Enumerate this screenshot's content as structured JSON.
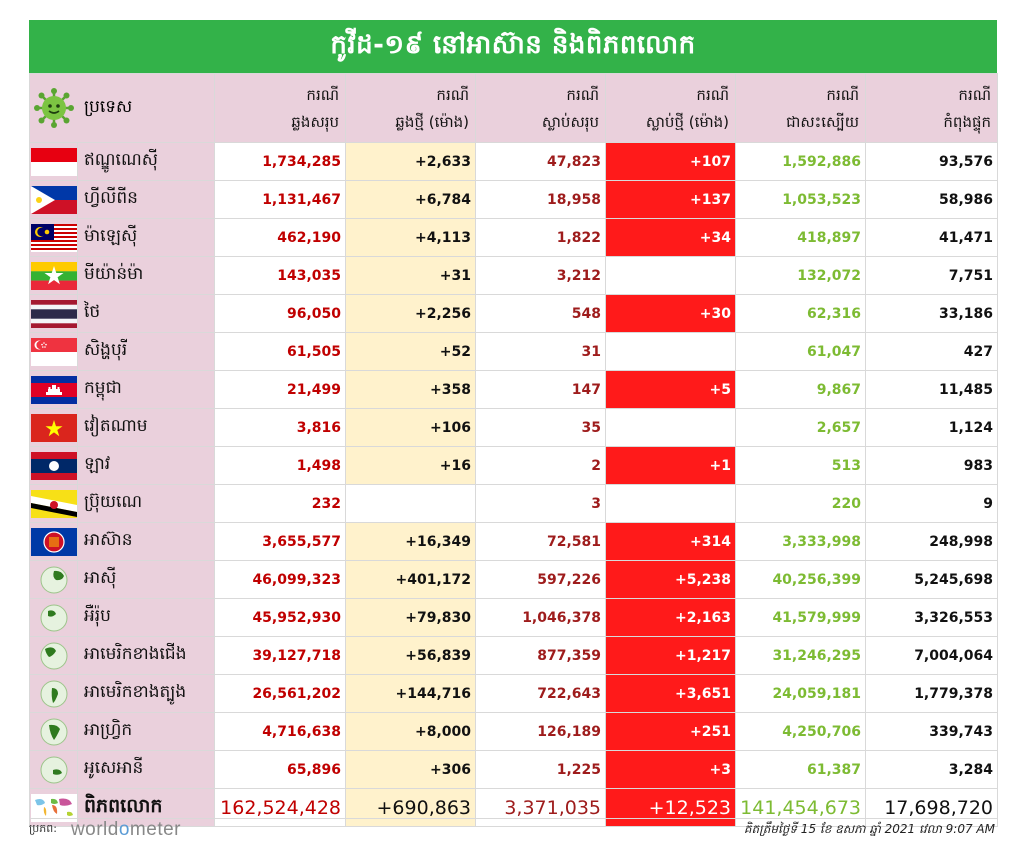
{
  "title": "កូវីដ-១៩ នៅអាស៊ាន និងពិភពលោក",
  "header": {
    "country": "ប្រទេស",
    "cols": [
      {
        "l1": "ករណី",
        "l2": "ឆ្លងសរុប"
      },
      {
        "l1": "ករណី",
        "l2": "ឆ្លងថ្មី (ម៉ោង)"
      },
      {
        "l1": "ករណី",
        "l2": "ស្លាប់សរុប"
      },
      {
        "l1": "ករណី",
        "l2": "ស្លាប់ថ្មី (ម៉ោង)"
      },
      {
        "l1": "ករណី",
        "l2": "ជាសះស្បើយ"
      },
      {
        "l1": "ករណី",
        "l2": "កំពុងផ្ទុក"
      }
    ]
  },
  "rows": [
    {
      "icon": "indonesia-flag-icon",
      "name": "ឥណ្ឌូណេស៊ី",
      "total": "1,734,285",
      "new": "+2,633",
      "deaths": "47,823",
      "new_deaths": "+107",
      "recovered": "1,592,886",
      "active": "93,576"
    },
    {
      "icon": "philippines-flag-icon",
      "name": "ហ្វីលីពីន",
      "total": "1,131,467",
      "new": "+6,784",
      "deaths": "18,958",
      "new_deaths": "+137",
      "recovered": "1,053,523",
      "active": "58,986"
    },
    {
      "icon": "malaysia-flag-icon",
      "name": "ម៉ាឡេស៊ី",
      "total": "462,190",
      "new": "+4,113",
      "deaths": "1,822",
      "new_deaths": "+34",
      "recovered": "418,897",
      "active": "41,471"
    },
    {
      "icon": "myanmar-flag-icon",
      "name": "មីយ៉ាន់ម៉ា",
      "total": "143,035",
      "new": "+31",
      "deaths": "3,212",
      "new_deaths": "",
      "recovered": "132,072",
      "active": "7,751"
    },
    {
      "icon": "thailand-flag-icon",
      "name": "ថៃ",
      "total": "96,050",
      "new": "+2,256",
      "deaths": "548",
      "new_deaths": "+30",
      "recovered": "62,316",
      "active": "33,186"
    },
    {
      "icon": "singapore-flag-icon",
      "name": "សិង្ហបុរី",
      "total": "61,505",
      "new": "+52",
      "deaths": "31",
      "new_deaths": "",
      "recovered": "61,047",
      "active": "427"
    },
    {
      "icon": "cambodia-flag-icon",
      "name": "កម្ពុជា",
      "total": "21,499",
      "new": "+358",
      "deaths": "147",
      "new_deaths": "+5",
      "recovered": "9,867",
      "active": "11,485"
    },
    {
      "icon": "vietnam-flag-icon",
      "name": "វៀតណាម",
      "total": "3,816",
      "new": "+106",
      "deaths": "35",
      "new_deaths": "",
      "recovered": "2,657",
      "active": "1,124"
    },
    {
      "icon": "laos-flag-icon",
      "name": "ឡាវ",
      "total": "1,498",
      "new": "+16",
      "deaths": "2",
      "new_deaths": "+1",
      "recovered": "513",
      "active": "983"
    },
    {
      "icon": "brunei-flag-icon",
      "name": "ប្រ៊ុយណេ",
      "total": "232",
      "new": "",
      "deaths": "3",
      "new_deaths": "",
      "recovered": "220",
      "active": "9"
    },
    {
      "icon": "asean-flag-icon",
      "name": "អាស៊ាន",
      "total": "3,655,577",
      "new": "+16,349",
      "deaths": "72,581",
      "new_deaths": "+314",
      "recovered": "3,333,998",
      "active": "248,998"
    },
    {
      "icon": "asia-globe-icon",
      "name": "អាស៊ី",
      "total": "46,099,323",
      "new": "+401,172",
      "deaths": "597,226",
      "new_deaths": "+5,238",
      "recovered": "40,256,399",
      "active": "5,245,698"
    },
    {
      "icon": "europe-globe-icon",
      "name": "អឺរ៉ុប",
      "total": "45,952,930",
      "new": "+79,830",
      "deaths": "1,046,378",
      "new_deaths": "+2,163",
      "recovered": "41,579,999",
      "active": "3,326,553"
    },
    {
      "icon": "north-america-globe-icon",
      "name": "អាមេរិកខាងជើង",
      "total": "39,127,718",
      "new": "+56,839",
      "deaths": "877,359",
      "new_deaths": "+1,217",
      "recovered": "31,246,295",
      "active": "7,004,064"
    },
    {
      "icon": "south-america-globe-icon",
      "name": "អាមេរិកខាងត្បូង",
      "total": "26,561,202",
      "new": "+144,716",
      "deaths": "722,643",
      "new_deaths": "+3,651",
      "recovered": "24,059,181",
      "active": "1,779,378"
    },
    {
      "icon": "africa-globe-icon",
      "name": "អាហ្វ្រិក",
      "total": "4,716,638",
      "new": "+8,000",
      "deaths": "126,189",
      "new_deaths": "+251",
      "recovered": "4,250,706",
      "active": "339,743"
    },
    {
      "icon": "oceania-globe-icon",
      "name": "អូសេអានី",
      "total": "65,896",
      "new": "+306",
      "deaths": "1,225",
      "new_deaths": "+3",
      "recovered": "61,387",
      "active": "3,284"
    }
  ],
  "world": {
    "icon": "world-map-icon",
    "name": "ពិភពលោក",
    "total": "162,524,428",
    "new": "+690,863",
    "deaths": "3,371,035",
    "new_deaths": "+12,523",
    "recovered": "141,454,673",
    "active": "17,698,720"
  },
  "footer": {
    "source_label": "ប្រភព:",
    "logo_a": "world",
    "logo_o": "o",
    "logo_b": "meter",
    "updated": "គិតត្រឹមថ្ងៃទី 15 ខែ ឧសភា ឆ្នាំ 2021 វេលា 9:07 AM"
  },
  "colors": {
    "title_bg": "#33b249",
    "header_bg": "#ead0dc",
    "new_cases_bg": "#fff2cc",
    "new_deaths_bg": "#ff1a1a",
    "total_text": "#c00000",
    "recovered_text": "#7dbb33"
  }
}
